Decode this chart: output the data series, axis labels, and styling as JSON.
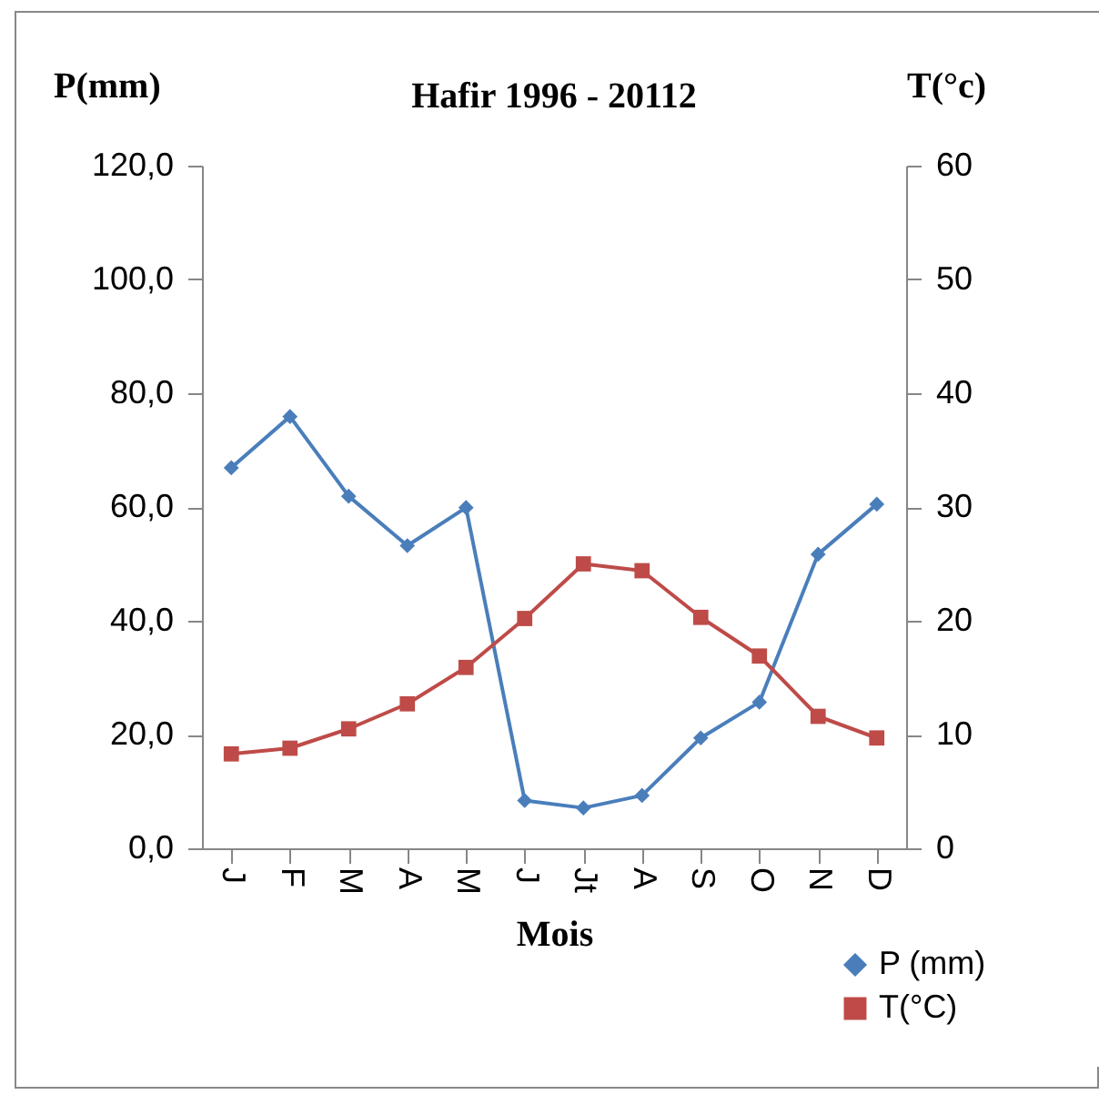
{
  "chart_data": {
    "type": "line",
    "title": "Hafir 1996 - 20112",
    "xlabel": "Mois",
    "ylabel": "P(mm)",
    "y2label": "T(°c)",
    "categories": [
      "J",
      "F",
      "M",
      "A",
      "M",
      "J",
      "Jt",
      "A",
      "S",
      "O",
      "N",
      "D"
    ],
    "series": [
      {
        "name": "P (mm)",
        "color": "#4a7ebb",
        "marker": "diamond",
        "values": [
          66.9,
          75.9,
          61.9,
          53.2,
          59.9,
          8.4,
          7.1,
          9.3,
          19.4,
          25.7,
          51.7,
          60.5
        ]
      },
      {
        "name": "T(°C)",
        "color": "#be4b48",
        "marker": "square",
        "axis": "y2",
        "values": [
          8.3,
          8.8,
          10.5,
          12.7,
          15.9,
          20.2,
          25.0,
          24.4,
          20.3,
          16.9,
          11.6,
          9.7
        ]
      }
    ],
    "ylim": [
      0,
      120
    ],
    "yticks": [
      {
        "value": 0,
        "label": "0,0"
      },
      {
        "value": 20,
        "label": "20,0"
      },
      {
        "value": 40,
        "label": "40,0"
      },
      {
        "value": 60,
        "label": "60,0"
      },
      {
        "value": 80,
        "label": "80,0"
      },
      {
        "value": 100,
        "label": "100,0"
      },
      {
        "value": 120,
        "label": "120,0"
      }
    ],
    "y2lim": [
      0,
      60
    ],
    "y2ticks": [
      0,
      10,
      20,
      30,
      40,
      50,
      60
    ],
    "legend": "bottom right",
    "grid": false
  }
}
